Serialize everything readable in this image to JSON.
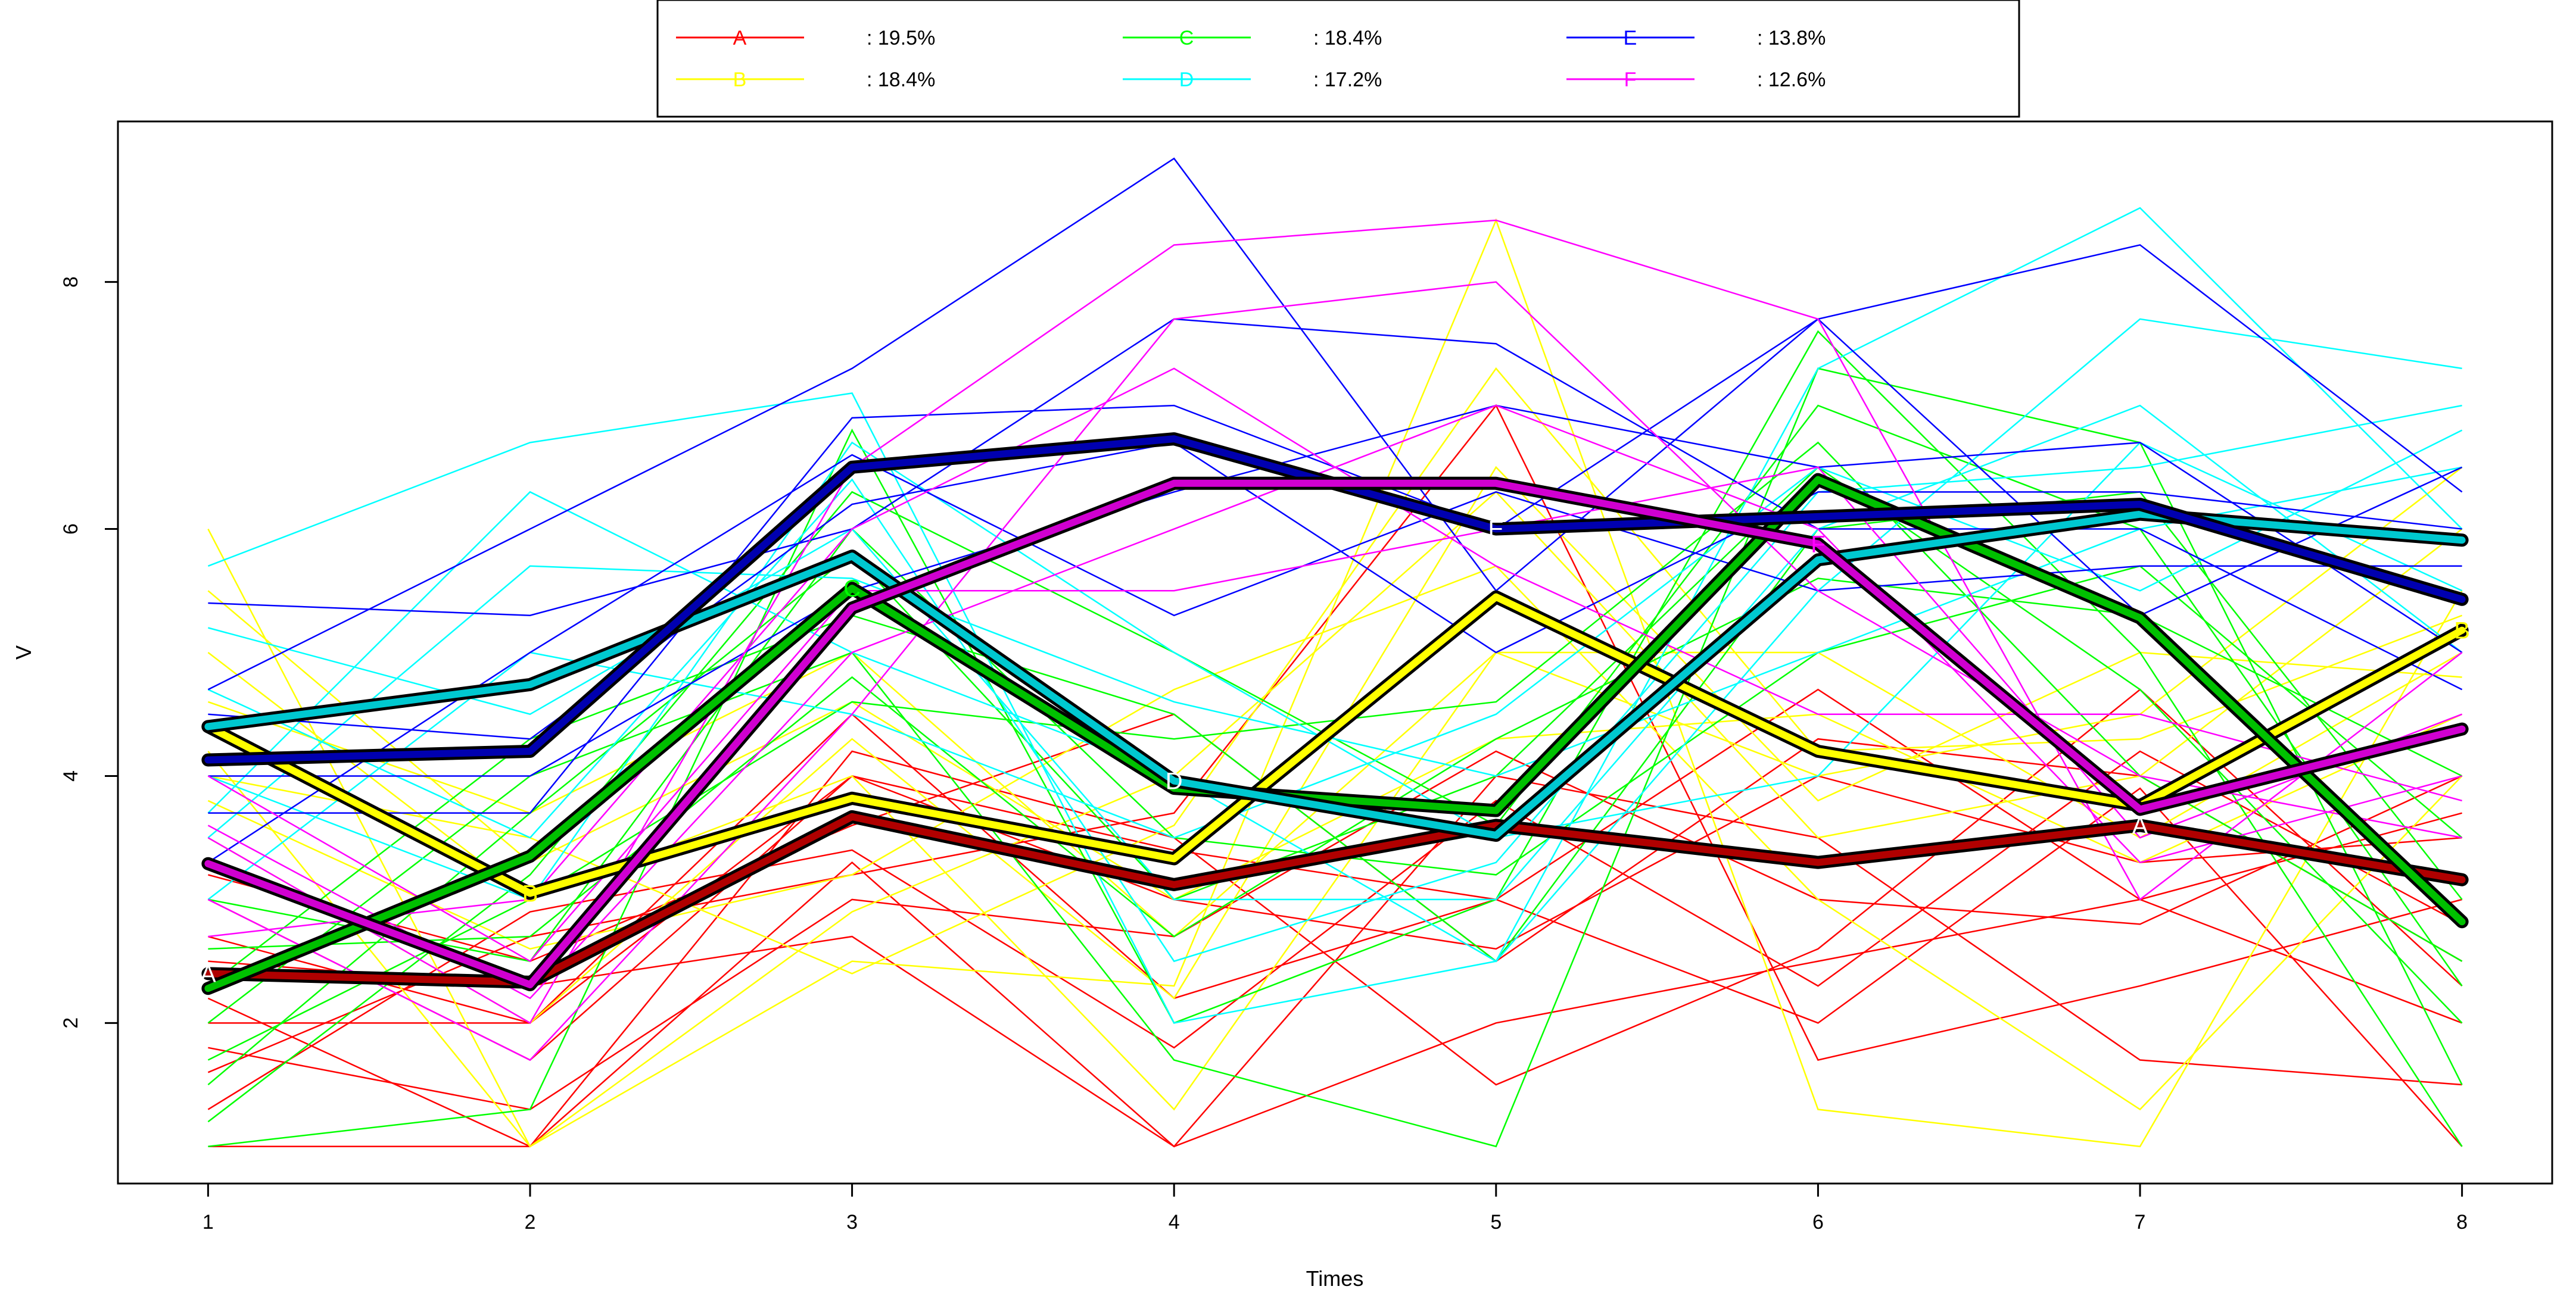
{
  "chart_data": {
    "type": "line",
    "xlabel": "Times",
    "ylabel": "V",
    "x": [
      1,
      2,
      3,
      4,
      5,
      6,
      7,
      8
    ],
    "xlim": [
      0.72,
      8.28
    ],
    "ylim": [
      0.7,
      9.3
    ],
    "x_ticks": [
      "1",
      "2",
      "3",
      "4",
      "5",
      "6",
      "7",
      "8"
    ],
    "y_ticks": [
      "2",
      "4",
      "6",
      "8"
    ],
    "legend": {
      "position": "top-center",
      "entries": [
        {
          "name": "A",
          "percent": ": 19.5%",
          "color": "#ff0000"
        },
        {
          "name": "B",
          "percent": ": 18.4%",
          "color": "#ffff00"
        },
        {
          "name": "C",
          "percent": ": 18.4%",
          "color": "#00ff00"
        },
        {
          "name": "D",
          "percent": ": 17.2%",
          "color": "#00ffff"
        },
        {
          "name": "E",
          "percent": ": 13.8%",
          "color": "#0000ff"
        },
        {
          "name": "F",
          "percent": ": 12.6%",
          "color": "#ff00ff"
        }
      ]
    },
    "series": [
      {
        "name": "A",
        "color": "#ff0000",
        "dark": "#b00000",
        "values": [
          2.4,
          2.33,
          3.67,
          3.12,
          3.6,
          3.3,
          3.6,
          3.16
        ],
        "label_at": 1
      },
      {
        "name": "B",
        "color": "#ffff00",
        "dark": "#ffff00",
        "values": [
          4.4,
          3.05,
          3.82,
          3.33,
          5.45,
          4.2,
          3.76,
          5.18
        ],
        "label_at": 2
      },
      {
        "name": "B",
        "color": "#ffff00",
        "dark": "#ffff00",
        "values": [
          4.4,
          3.05,
          3.82,
          3.33,
          5.45,
          4.2,
          3.76,
          5.18
        ],
        "label_at": 8
      },
      {
        "name": "C",
        "color": "#00ff00",
        "dark": "#00c000",
        "values": [
          2.28,
          3.35,
          5.52,
          3.9,
          3.72,
          6.4,
          5.28,
          2.82
        ],
        "label_at": 3
      },
      {
        "name": "D",
        "color": "#00ffff",
        "dark": "#00c8d0",
        "values": [
          4.4,
          4.74,
          5.78,
          3.96,
          3.52,
          5.75,
          6.12,
          5.91
        ],
        "label_at": 4
      },
      {
        "name": "E",
        "color": "#0000ff",
        "dark": "#0000b0",
        "values": [
          4.13,
          4.2,
          6.5,
          6.73,
          6.0,
          6.1,
          6.2,
          5.43
        ],
        "label_at": 5
      },
      {
        "name": "F",
        "color": "#ff00ff",
        "dark": "#d000d0",
        "values": [
          3.29,
          2.31,
          5.36,
          6.37,
          6.37,
          5.88,
          3.73,
          4.38
        ],
        "label_at": 6
      },
      {
        "name": "A",
        "color": "#ff0000",
        "dark": "#b00000",
        "values": [
          2.4,
          2.33,
          3.67,
          3.12,
          3.6,
          3.3,
          3.6,
          3.16
        ],
        "label_at": 7
      }
    ],
    "individual_trajectories": [
      {
        "cluster": "A",
        "values": [
          2.2,
          1.0,
          3.3,
          1.0,
          2.0,
          2.5,
          3.0,
          2.0
        ]
      },
      {
        "cluster": "A",
        "values": [
          1.0,
          1.0,
          4.2,
          3.5,
          1.5,
          2.6,
          4.7,
          2.3
        ]
      },
      {
        "cluster": "A",
        "values": [
          2.5,
          2.3,
          2.7,
          1.0,
          4.0,
          3.5,
          1.7,
          1.5
        ]
      },
      {
        "cluster": "A",
        "values": [
          3.0,
          1.7,
          4.0,
          3.0,
          2.6,
          4.0,
          3.3,
          3.5
        ]
      },
      {
        "cluster": "A",
        "values": [
          1.6,
          2.7,
          3.2,
          3.7,
          7.0,
          1.7,
          2.3,
          3.0
        ]
      },
      {
        "cluster": "A",
        "values": [
          2.0,
          2.0,
          4.5,
          2.2,
          3.0,
          2.0,
          3.9,
          1.0
        ]
      },
      {
        "cluster": "A",
        "values": [
          3.2,
          2.5,
          3.6,
          4.5,
          2.5,
          4.3,
          4.0,
          2.5
        ]
      },
      {
        "cluster": "A",
        "values": [
          1.8,
          1.3,
          3.0,
          2.7,
          4.2,
          3.0,
          2.8,
          4.0
        ]
      },
      {
        "cluster": "A",
        "values": [
          2.7,
          2.0,
          4.0,
          3.4,
          3.0,
          4.7,
          3.0,
          3.7
        ]
      },
      {
        "cluster": "A",
        "values": [
          1.3,
          2.9,
          3.4,
          1.8,
          3.8,
          2.3,
          4.2,
          2.8
        ]
      },
      {
        "cluster": "B",
        "values": [
          6.0,
          1.0,
          2.5,
          2.3,
          8.5,
          1.3,
          1.0,
          5.5
        ]
      },
      {
        "cluster": "B",
        "values": [
          5.0,
          3.0,
          4.0,
          1.3,
          5.0,
          4.0,
          4.5,
          6.5
        ]
      },
      {
        "cluster": "B",
        "values": [
          3.8,
          2.6,
          3.2,
          4.7,
          5.7,
          3.0,
          1.3,
          4.0
        ]
      },
      {
        "cluster": "B",
        "values": [
          4.6,
          3.7,
          5.0,
          2.7,
          5.0,
          5.0,
          3.5,
          5.0
        ]
      },
      {
        "cluster": "B",
        "values": [
          4.2,
          1.0,
          2.9,
          4.0,
          6.3,
          3.5,
          4.0,
          6.0
        ]
      },
      {
        "cluster": "B",
        "values": [
          5.5,
          3.3,
          4.6,
          3.0,
          4.3,
          4.5,
          3.3,
          4.5
        ]
      },
      {
        "cluster": "B",
        "values": [
          3.5,
          2.0,
          4.3,
          2.2,
          6.5,
          3.8,
          5.0,
          4.8
        ]
      },
      {
        "cluster": "B",
        "values": [
          4.0,
          3.5,
          2.4,
          3.6,
          7.3,
          4.2,
          4.3,
          5.3
        ]
      },
      {
        "cluster": "C",
        "values": [
          1.0,
          1.3,
          6.8,
          2.0,
          3.0,
          7.6,
          5.0,
          1.0
        ]
      },
      {
        "cluster": "C",
        "values": [
          2.0,
          4.0,
          5.0,
          1.7,
          1.0,
          7.3,
          6.7,
          1.5
        ]
      },
      {
        "cluster": "C",
        "values": [
          1.7,
          3.0,
          4.6,
          4.3,
          4.6,
          6.7,
          4.0,
          2.5
        ]
      },
      {
        "cluster": "C",
        "values": [
          3.0,
          2.5,
          6.0,
          3.5,
          3.2,
          5.0,
          5.7,
          3.5
        ]
      },
      {
        "cluster": "C",
        "values": [
          2.3,
          4.3,
          5.3,
          4.5,
          2.5,
          6.0,
          6.3,
          3.0
        ]
      },
      {
        "cluster": "C",
        "values": [
          1.5,
          3.7,
          5.8,
          3.0,
          4.0,
          6.5,
          4.7,
          2.0
        ]
      },
      {
        "cluster": "C",
        "values": [
          2.6,
          2.7,
          4.8,
          2.7,
          4.3,
          5.6,
          5.3,
          4.0
        ]
      },
      {
        "cluster": "C",
        "values": [
          1.2,
          3.2,
          6.3,
          5.0,
          3.6,
          7.0,
          6.0,
          2.3
        ]
      },
      {
        "cluster": "D",
        "values": [
          5.7,
          6.7,
          7.1,
          2.0,
          2.5,
          7.3,
          8.6,
          6.0
        ]
      },
      {
        "cluster": "D",
        "values": [
          3.7,
          6.3,
          5.0,
          4.0,
          2.5,
          5.5,
          7.7,
          7.3
        ]
      },
      {
        "cluster": "D",
        "values": [
          4.0,
          3.0,
          6.7,
          5.0,
          3.5,
          4.0,
          6.7,
          5.5
        ]
      },
      {
        "cluster": "D",
        "values": [
          3.0,
          5.0,
          4.5,
          3.5,
          4.5,
          6.5,
          5.5,
          6.8
        ]
      },
      {
        "cluster": "D",
        "values": [
          5.2,
          4.5,
          6.0,
          3.0,
          3.0,
          6.0,
          7.0,
          5.0
        ]
      },
      {
        "cluster": "D",
        "values": [
          3.5,
          5.7,
          5.6,
          4.6,
          4.0,
          5.0,
          6.0,
          6.5
        ]
      },
      {
        "cluster": "D",
        "values": [
          4.7,
          3.5,
          6.4,
          2.5,
          3.3,
          6.3,
          6.5,
          7.0
        ]
      },
      {
        "cluster": "E",
        "values": [
          4.7,
          6.0,
          7.3,
          9.0,
          5.5,
          7.7,
          8.3,
          6.3
        ]
      },
      {
        "cluster": "E",
        "values": [
          5.4,
          5.3,
          6.0,
          7.7,
          7.5,
          6.0,
          6.0,
          4.7
        ]
      },
      {
        "cluster": "E",
        "values": [
          3.7,
          3.7,
          6.9,
          7.0,
          6.0,
          7.7,
          5.3,
          6.5
        ]
      },
      {
        "cluster": "E",
        "values": [
          4.0,
          4.0,
          5.5,
          6.3,
          7.0,
          6.5,
          6.7,
          5.0
        ]
      },
      {
        "cluster": "E",
        "values": [
          3.3,
          5.0,
          6.6,
          5.3,
          6.3,
          5.5,
          5.7,
          5.7
        ]
      },
      {
        "cluster": "E",
        "values": [
          4.5,
          4.3,
          6.2,
          6.7,
          5.0,
          6.3,
          6.3,
          6.0
        ]
      },
      {
        "cluster": "F",
        "values": [
          3.5,
          2.0,
          6.5,
          8.3,
          8.5,
          7.7,
          3.0,
          5.0
        ]
      },
      {
        "cluster": "F",
        "values": [
          3.0,
          1.7,
          4.5,
          7.7,
          8.0,
          5.5,
          4.0,
          3.5
        ]
      },
      {
        "cluster": "F",
        "values": [
          4.0,
          2.5,
          5.5,
          5.5,
          6.0,
          6.5,
          3.5,
          4.5
        ]
      },
      {
        "cluster": "F",
        "values": [
          2.7,
          3.0,
          6.0,
          7.3,
          5.7,
          4.5,
          4.5,
          3.8
        ]
      },
      {
        "cluster": "F",
        "values": [
          3.6,
          2.2,
          5.0,
          6.0,
          7.0,
          6.0,
          3.3,
          4.0
        ]
      }
    ]
  }
}
